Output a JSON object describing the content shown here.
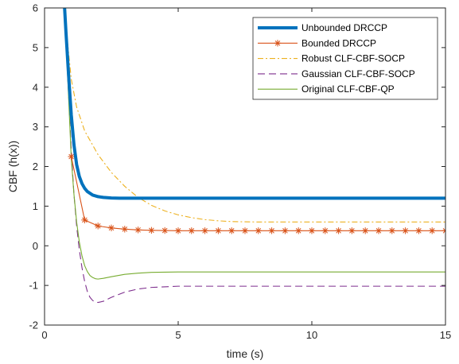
{
  "chart_data": {
    "type": "line",
    "title": "",
    "xlabel": "time (s)",
    "ylabel": "CBF (h(x))",
    "xlim": [
      0,
      15
    ],
    "ylim": [
      -2,
      6
    ],
    "xticks": [
      0,
      5,
      10,
      15
    ],
    "yticks": [
      -2,
      -1,
      0,
      1,
      2,
      3,
      4,
      5,
      6
    ],
    "grid": false,
    "legend_position": "top-right",
    "series": [
      {
        "name": "Unbounded DRCCP",
        "color": "#0072BD",
        "line_style": "solid",
        "marker": "none",
        "x": [
          0.75,
          0.8,
          0.9,
          1.0,
          1.1,
          1.2,
          1.3,
          1.4,
          1.5,
          1.6,
          1.8,
          2.0,
          2.2,
          2.5,
          2.8,
          3.0,
          3.5,
          4.0,
          5.0,
          6.0,
          8.0,
          10.0,
          12.0,
          15.0
        ],
        "y": [
          6.0,
          5.4,
          4.3,
          3.3,
          2.55,
          2.05,
          1.75,
          1.57,
          1.45,
          1.37,
          1.28,
          1.24,
          1.22,
          1.205,
          1.2,
          1.2,
          1.2,
          1.2,
          1.2,
          1.2,
          1.2,
          1.2,
          1.2,
          1.2
        ]
      },
      {
        "name": "Bounded DRCCP",
        "color": "#D95319",
        "line_style": "solid",
        "marker": "asterisk",
        "x": [
          1.0,
          1.5,
          2.0,
          2.5,
          3.0,
          3.5,
          4.0,
          4.5,
          5.0,
          5.5,
          6.0,
          6.5,
          7.0,
          7.5,
          8.0,
          8.5,
          9.0,
          9.5,
          10.0,
          10.5,
          11.0,
          11.5,
          12.0,
          12.5,
          13.0,
          13.5,
          14.0,
          14.5,
          15.0
        ],
        "y": [
          2.25,
          0.65,
          0.5,
          0.45,
          0.42,
          0.4,
          0.39,
          0.385,
          0.38,
          0.38,
          0.38,
          0.38,
          0.38,
          0.38,
          0.38,
          0.38,
          0.38,
          0.38,
          0.38,
          0.38,
          0.38,
          0.38,
          0.38,
          0.38,
          0.38,
          0.38,
          0.38,
          0.38,
          0.38
        ]
      },
      {
        "name": "Robust CLF-CBF-SOCP",
        "color": "#EDB120",
        "line_style": "dash-dot",
        "marker": "none",
        "x": [
          0.75,
          0.85,
          1.0,
          1.2,
          1.5,
          2.0,
          2.5,
          3.0,
          3.5,
          4.0,
          4.5,
          5.0,
          5.5,
          6.0,
          6.5,
          7.0,
          8.0,
          9.0,
          10.0,
          12.0,
          15.0
        ],
        "y": [
          6.0,
          5.2,
          4.2,
          3.5,
          2.9,
          2.3,
          1.85,
          1.5,
          1.22,
          1.02,
          0.88,
          0.78,
          0.71,
          0.66,
          0.63,
          0.61,
          0.6,
          0.6,
          0.6,
          0.6,
          0.6
        ]
      },
      {
        "name": "Gaussian CLF-CBF-SOCP",
        "color": "#7E2F8E",
        "line_style": "dashed",
        "marker": "none",
        "x": [
          0.75,
          0.85,
          1.0,
          1.1,
          1.2,
          1.3,
          1.4,
          1.5,
          1.6,
          1.7,
          1.8,
          1.9,
          2.0,
          2.2,
          2.5,
          3.0,
          3.5,
          4.0,
          5.0,
          6.0,
          8.0,
          10.0,
          12.0,
          15.0
        ],
        "y": [
          6.0,
          4.5,
          2.4,
          1.3,
          0.5,
          -0.1,
          -0.55,
          -0.9,
          -1.15,
          -1.3,
          -1.38,
          -1.42,
          -1.43,
          -1.4,
          -1.3,
          -1.17,
          -1.09,
          -1.05,
          -1.02,
          -1.02,
          -1.02,
          -1.02,
          -1.02,
          -1.02
        ]
      },
      {
        "name": "Original CLF-CBF-QP",
        "color": "#77AC30",
        "line_style": "solid",
        "marker": "none",
        "x": [
          0.75,
          0.85,
          1.0,
          1.1,
          1.2,
          1.3,
          1.4,
          1.5,
          1.6,
          1.7,
          1.8,
          1.9,
          2.0,
          2.2,
          2.5,
          3.0,
          3.5,
          4.0,
          5.0,
          6.0,
          8.0,
          10.0,
          12.0,
          15.0
        ],
        "y": [
          6.0,
          4.5,
          2.2,
          1.3,
          0.6,
          0.1,
          -0.25,
          -0.5,
          -0.65,
          -0.75,
          -0.8,
          -0.83,
          -0.84,
          -0.82,
          -0.78,
          -0.72,
          -0.69,
          -0.67,
          -0.66,
          -0.66,
          -0.66,
          -0.66,
          -0.66,
          -0.66
        ]
      }
    ]
  }
}
